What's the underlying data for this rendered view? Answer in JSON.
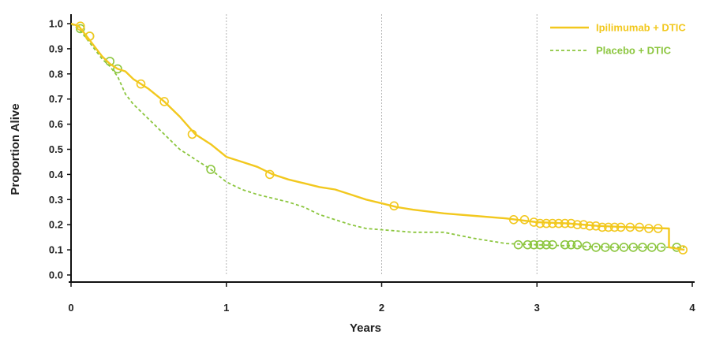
{
  "chart_data": {
    "type": "line",
    "title": "",
    "xlabel": "Years",
    "ylabel": "Proportion Alive",
    "xlim": [
      0,
      4
    ],
    "ylim": [
      0,
      1.0
    ],
    "x_ticks": [
      "0",
      "1",
      "2",
      "3",
      "4"
    ],
    "y_ticks": [
      "0.0",
      "0.1",
      "0.2",
      "0.3",
      "0.4",
      "0.5",
      "0.6",
      "0.7",
      "0.8",
      "0.9",
      "1.0"
    ],
    "vertical_gridlines": [
      1,
      2,
      3
    ],
    "legend_position": "top-right",
    "series": [
      {
        "name": "Ipilimumab + DTIC",
        "color": "#f2c81e",
        "line_style": "solid",
        "x": [
          0,
          0.05,
          0.1,
          0.15,
          0.2,
          0.25,
          0.3,
          0.35,
          0.4,
          0.5,
          0.6,
          0.7,
          0.8,
          0.9,
          1.0,
          1.1,
          1.2,
          1.3,
          1.4,
          1.5,
          1.6,
          1.7,
          1.8,
          1.9,
          2.0,
          2.1,
          2.2,
          2.4,
          2.6,
          2.8,
          3.0,
          3.2,
          3.4,
          3.6,
          3.85,
          3.85,
          3.95
        ],
        "y": [
          1.0,
          0.99,
          0.95,
          0.91,
          0.87,
          0.84,
          0.82,
          0.81,
          0.78,
          0.74,
          0.69,
          0.63,
          0.56,
          0.52,
          0.47,
          0.45,
          0.43,
          0.4,
          0.38,
          0.365,
          0.35,
          0.34,
          0.32,
          0.3,
          0.285,
          0.27,
          0.26,
          0.245,
          0.235,
          0.225,
          0.21,
          0.205,
          0.195,
          0.19,
          0.185,
          0.11,
          0.1
        ],
        "censored_x": [
          0.06,
          0.12,
          0.45,
          0.6,
          0.78,
          1.28,
          2.08,
          2.85,
          2.92,
          2.98,
          3.02,
          3.06,
          3.1,
          3.14,
          3.18,
          3.22,
          3.26,
          3.3,
          3.34,
          3.38,
          3.42,
          3.46,
          3.5,
          3.54,
          3.6,
          3.66,
          3.72,
          3.78,
          3.94
        ],
        "censored_y": [
          0.99,
          0.95,
          0.76,
          0.69,
          0.56,
          0.4,
          0.275,
          0.22,
          0.22,
          0.21,
          0.205,
          0.205,
          0.205,
          0.205,
          0.205,
          0.205,
          0.2,
          0.2,
          0.195,
          0.195,
          0.19,
          0.19,
          0.19,
          0.19,
          0.19,
          0.19,
          0.185,
          0.185,
          0.1
        ]
      },
      {
        "name": "Placebo + DTIC",
        "color": "#8cc63f",
        "line_style": "dashed",
        "x": [
          0,
          0.05,
          0.1,
          0.15,
          0.2,
          0.25,
          0.3,
          0.35,
          0.4,
          0.5,
          0.6,
          0.7,
          0.8,
          0.9,
          1.0,
          1.1,
          1.2,
          1.3,
          1.4,
          1.5,
          1.6,
          1.7,
          1.8,
          1.9,
          2.0,
          2.2,
          2.4,
          2.6,
          2.8,
          3.0,
          3.5,
          3.95
        ],
        "y": [
          1.0,
          0.98,
          0.94,
          0.9,
          0.86,
          0.83,
          0.79,
          0.72,
          0.68,
          0.62,
          0.56,
          0.5,
          0.46,
          0.42,
          0.37,
          0.34,
          0.32,
          0.305,
          0.29,
          0.27,
          0.24,
          0.22,
          0.2,
          0.185,
          0.18,
          0.17,
          0.17,
          0.145,
          0.125,
          0.12,
          0.11,
          0.11
        ],
        "censored_x": [
          0.06,
          0.12,
          0.25,
          0.3,
          0.9,
          2.88,
          2.94,
          2.98,
          3.02,
          3.06,
          3.1,
          3.18,
          3.22,
          3.26,
          3.32,
          3.38,
          3.44,
          3.5,
          3.56,
          3.62,
          3.68,
          3.74,
          3.8,
          3.9
        ],
        "censored_y": [
          0.98,
          0.95,
          0.85,
          0.82,
          0.42,
          0.12,
          0.12,
          0.12,
          0.12,
          0.12,
          0.12,
          0.12,
          0.12,
          0.12,
          0.115,
          0.11,
          0.11,
          0.11,
          0.11,
          0.11,
          0.11,
          0.11,
          0.11,
          0.11
        ]
      }
    ]
  }
}
